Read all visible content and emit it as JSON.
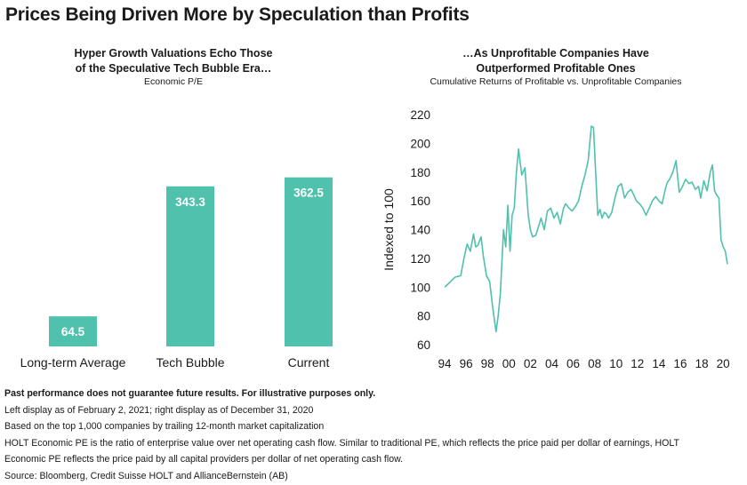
{
  "title": "Prices Being Driven More by Speculation than Profits",
  "left": {
    "title_line1": "Hyper Growth Valuations Echo Those",
    "title_line2": "of the Speculative Tech Bubble Era…",
    "subtitle": "Economic P/E"
  },
  "right": {
    "title_line1": "…As Unprofitable Companies Have",
    "title_line2": "Outperformed Profitable Ones",
    "subtitle": "Cumulative Returns of Profitable vs. Unprofitable Companies"
  },
  "colors": {
    "accent": "#4fc1ad",
    "bar_label": "#ffffff",
    "text": "#1a1a1a"
  },
  "chart_data": [
    {
      "type": "bar",
      "categories": [
        "Long-term Average",
        "Tech Bubble",
        "Current"
      ],
      "values": [
        64.5,
        343.3,
        362.5
      ],
      "value_labels": [
        "64.5",
        "343.3",
        "362.5"
      ],
      "ylim": [
        0,
        400
      ],
      "grid": false
    },
    {
      "type": "line",
      "ylabel": "Indexed to 100",
      "ylim": [
        60,
        220
      ],
      "yticks": [
        60,
        80,
        100,
        120,
        140,
        160,
        180,
        200,
        220
      ],
      "xlim": [
        1994,
        2020.4
      ],
      "xticks": [
        1994,
        1996,
        1998,
        2000,
        2002,
        2004,
        2006,
        2008,
        2010,
        2012,
        2014,
        2016,
        2018,
        2020
      ],
      "xtick_labels": [
        "94",
        "96",
        "98",
        "00",
        "02",
        "04",
        "06",
        "08",
        "10",
        "12",
        "14",
        "16",
        "18",
        "20"
      ],
      "grid": false,
      "x": [
        1994.0,
        1994.3,
        1994.7,
        1995.0,
        1995.5,
        1995.8,
        1996.1,
        1996.4,
        1996.7,
        1996.9,
        1997.1,
        1997.4,
        1997.6,
        1997.9,
        1998.2,
        1998.5,
        1998.8,
        1999.0,
        1999.2,
        1999.5,
        1999.7,
        1999.9,
        2000.1,
        2000.3,
        2000.5,
        2000.7,
        2000.9,
        2001.2,
        2001.5,
        2001.8,
        2002.0,
        2002.2,
        2002.5,
        2002.8,
        2003.0,
        2003.3,
        2003.6,
        2003.9,
        2004.2,
        2004.5,
        2004.8,
        2005.1,
        2005.3,
        2005.6,
        2005.9,
        2006.2,
        2006.5,
        2006.8,
        2007.1,
        2007.4,
        2007.7,
        2007.9,
        2008.1,
        2008.3,
        2008.5,
        2008.7,
        2008.9,
        2009.1,
        2009.3,
        2009.6,
        2009.9,
        2010.2,
        2010.5,
        2010.8,
        2011.1,
        2011.4,
        2011.6,
        2011.9,
        2012.2,
        2012.5,
        2012.8,
        2013.1,
        2013.4,
        2013.7,
        2014.0,
        2014.3,
        2014.6,
        2014.8,
        2015.0,
        2015.3,
        2015.6,
        2015.9,
        2016.2,
        2016.5,
        2016.8,
        2017.1,
        2017.4,
        2017.7,
        2017.9,
        2018.2,
        2018.5,
        2018.8,
        2019.0,
        2019.2,
        2019.4,
        2019.6,
        2019.8,
        2020.0,
        2020.2,
        2020.4
      ],
      "values": [
        100,
        102,
        105,
        107,
        108,
        120,
        130,
        125,
        137,
        128,
        129,
        135,
        122,
        108,
        104,
        85,
        69,
        80,
        95,
        140,
        128,
        157,
        125,
        150,
        155,
        180,
        196,
        178,
        183,
        150,
        140,
        135,
        136,
        143,
        148,
        140,
        153,
        155,
        148,
        152,
        144,
        155,
        158,
        155,
        153,
        156,
        160,
        170,
        178,
        188,
        212,
        211,
        180,
        150,
        154,
        148,
        152,
        151,
        148,
        152,
        162,
        170,
        172,
        162,
        166,
        168,
        165,
        160,
        158,
        155,
        150,
        155,
        160,
        163,
        160,
        158,
        168,
        173,
        175,
        180,
        188,
        166,
        170,
        175,
        172,
        173,
        168,
        170,
        162,
        174,
        167,
        180,
        185,
        167,
        164,
        162,
        133,
        128,
        125,
        116
      ]
    }
  ],
  "footnotes": {
    "disclaimer": "Past performance does not guarantee future results. For illustrative purposes only.",
    "line1": "Left display as of February 2, 2021; right display as of December 31, 2020",
    "line2": "Based on the top 1,000 companies by trailing 12-month market capitalization",
    "line3": "HOLT Economic PE is the ratio of enterprise value over net operating cash flow. Similar to traditional PE, which reflects the price paid per dollar of earnings, HOLT",
    "line4": "Economic PE reflects the price paid by all capital providers per dollar of net operating cash flow.",
    "line5": "Source: Bloomberg, Credit Suisse HOLT and AllianceBernstein (AB)"
  }
}
